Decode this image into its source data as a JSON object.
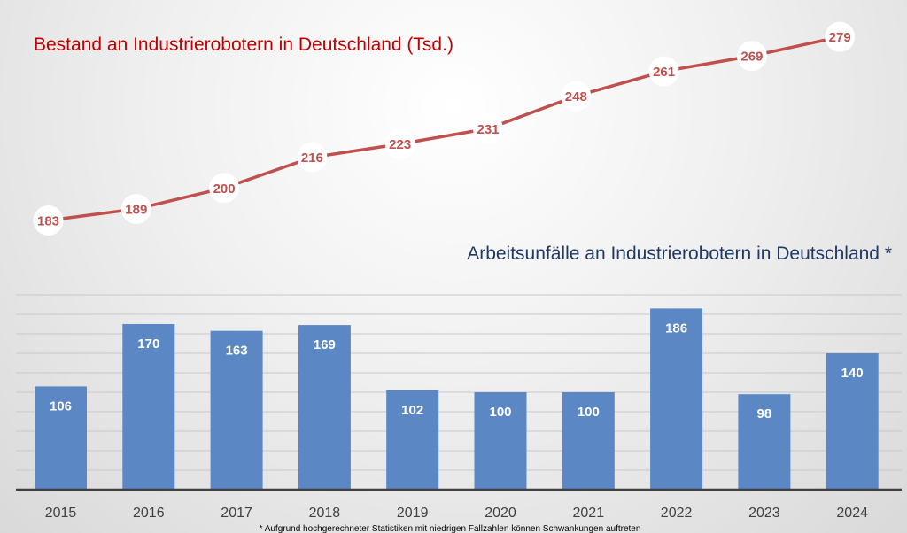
{
  "chart_data": [
    {
      "type": "line",
      "title": "Bestand an Industrierobotern in Deutschland (Tsd.)",
      "x": [
        "2015",
        "2016",
        "2017",
        "2018",
        "2019",
        "2020",
        "2021",
        "2022",
        "2023",
        "2024"
      ],
      "series": [
        {
          "values": [
            183,
            189,
            200,
            216,
            223,
            231,
            248,
            261,
            269,
            279
          ]
        }
      ],
      "colors": {
        "line": "#c0504d",
        "marker": "#ffffff",
        "label": "#c0504d",
        "title": "#c00000"
      },
      "data_labels": "in white circular markers",
      "grid": false
    },
    {
      "type": "bar",
      "title": "Arbeitsunfälle an Industrierobotern in Deutschland *",
      "categories": [
        "2015",
        "2016",
        "2017",
        "2018",
        "2019",
        "2020",
        "2021",
        "2022",
        "2023",
        "2024"
      ],
      "values": [
        106,
        170,
        163,
        169,
        102,
        100,
        100,
        186,
        98,
        140
      ],
      "ylim": [
        0,
        200
      ],
      "grid": true,
      "colors": {
        "bar": "#5b87c5",
        "bar_label": "#ffffff",
        "title": "#1f3864",
        "axis": "#404040"
      },
      "footnote": "* Aufgrund hochgerechneter Statistiken mit niedrigen Fallzahlen können Schwankungen auftreten"
    }
  ]
}
